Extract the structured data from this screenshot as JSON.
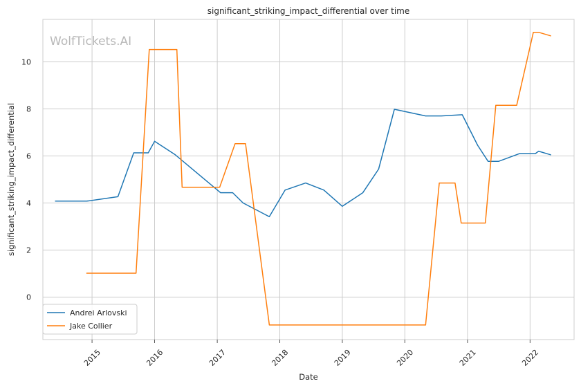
{
  "chart_data": {
    "type": "line",
    "title": "significant_striking_impact_differential over time",
    "xlabel": "Date",
    "ylabel": "significant_striking_impact_differential",
    "watermark": "WolfTickets.AI",
    "xlim": [
      "2014-03-20",
      "2022-09-15"
    ],
    "ylim": [
      -1.8,
      11.8
    ],
    "x_ticks": [
      "2015-01-01",
      "2016-01-01",
      "2017-01-01",
      "2018-01-01",
      "2019-01-01",
      "2020-01-01",
      "2021-01-01",
      "2022-01-01"
    ],
    "x_tick_labels": [
      "2015",
      "2016",
      "2017",
      "2018",
      "2019",
      "2020",
      "2021",
      "2022"
    ],
    "y_ticks": [
      0,
      2,
      4,
      6,
      8,
      10
    ],
    "y_tick_labels": [
      "0",
      "2",
      "4",
      "6",
      "8",
      "10"
    ],
    "grid": true,
    "legend_position": "lower-left",
    "series": [
      {
        "name": "Andrei Arlovski",
        "color": "#1f77b4",
        "points": [
          [
            "2014-06-01",
            4.08
          ],
          [
            "2014-12-01",
            4.08
          ],
          [
            "2015-06-01",
            4.27
          ],
          [
            "2015-09-01",
            6.13
          ],
          [
            "2015-11-25",
            6.13
          ],
          [
            "2016-01-01",
            6.62
          ],
          [
            "2016-05-01",
            6.05
          ],
          [
            "2017-01-20",
            4.44
          ],
          [
            "2017-04-01",
            4.44
          ],
          [
            "2017-06-01",
            4.0
          ],
          [
            "2017-11-01",
            3.42
          ],
          [
            "2018-02-01",
            4.55
          ],
          [
            "2018-06-01",
            4.85
          ],
          [
            "2018-09-15",
            4.55
          ],
          [
            "2019-01-01",
            3.86
          ],
          [
            "2019-05-01",
            4.44
          ],
          [
            "2019-08-01",
            5.44
          ],
          [
            "2019-11-01",
            7.98
          ],
          [
            "2020-05-01",
            7.7
          ],
          [
            "2020-08-01",
            7.7
          ],
          [
            "2020-12-01",
            7.75
          ],
          [
            "2021-03-01",
            6.45
          ],
          [
            "2021-05-01",
            5.77
          ],
          [
            "2021-07-01",
            5.77
          ],
          [
            "2021-11-01",
            6.1
          ],
          [
            "2022-02-01",
            6.1
          ],
          [
            "2022-02-20",
            6.2
          ],
          [
            "2022-05-01",
            6.05
          ]
        ]
      },
      {
        "name": "Jake Collier",
        "color": "#ff7f0e",
        "points": [
          [
            "2014-12-01",
            1.02
          ],
          [
            "2015-09-15",
            1.02
          ],
          [
            "2015-12-01",
            10.52
          ],
          [
            "2016-05-10",
            10.52
          ],
          [
            "2016-06-10",
            4.67
          ],
          [
            "2017-01-15",
            4.67
          ],
          [
            "2017-04-15",
            6.52
          ],
          [
            "2017-06-15",
            6.52
          ],
          [
            "2017-11-01",
            -1.18
          ],
          [
            "2020-05-01",
            -1.18
          ],
          [
            "2020-07-20",
            4.85
          ],
          [
            "2020-10-20",
            4.85
          ],
          [
            "2020-11-25",
            3.15
          ],
          [
            "2021-04-15",
            3.15
          ],
          [
            "2021-06-15",
            8.15
          ],
          [
            "2021-10-15",
            8.15
          ],
          [
            "2022-01-20",
            11.25
          ],
          [
            "2022-02-20",
            11.25
          ],
          [
            "2022-05-01",
            11.1
          ]
        ]
      }
    ]
  }
}
